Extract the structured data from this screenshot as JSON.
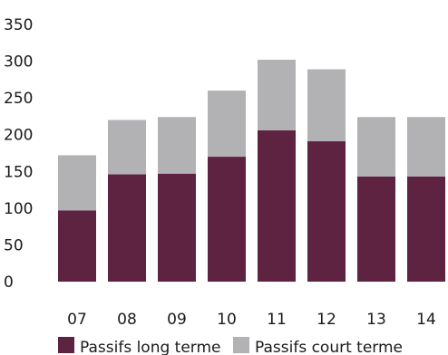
{
  "chart_data": {
    "type": "bar",
    "stacked": true,
    "categories": [
      "07",
      "08",
      "09",
      "10",
      "11",
      "12",
      "13",
      "14"
    ],
    "series": [
      {
        "name": "Passifs long terme",
        "color": "#5e2340",
        "values": [
          97,
          146,
          147,
          170,
          206,
          191,
          143,
          143
        ]
      },
      {
        "name": "Passifs court terme",
        "color": "#b2b2b5",
        "values": [
          75,
          74,
          77,
          90,
          96,
          98,
          81,
          81
        ]
      }
    ],
    "yticks": [
      0,
      50,
      100,
      150,
      200,
      250,
      300,
      350
    ],
    "ylim": [
      0,
      350
    ],
    "grid": false,
    "legend_position": "bottom-left"
  }
}
